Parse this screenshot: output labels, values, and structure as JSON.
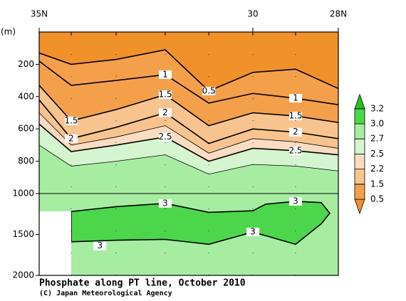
{
  "chart_data": {
    "type": "contour",
    "title": "Phosphate along PT line, October 2010",
    "credit": "(C) Japan Meteorological Agency",
    "y_label": "(m)",
    "xlim": [
      35,
      28
    ],
    "xticks": [
      {
        "value": 35,
        "label": "35N"
      },
      30,
      {
        "value": 28,
        "label": "28N"
      }
    ],
    "ylim": [
      0,
      2000
    ],
    "scale_break": 1000,
    "yticks": [
      200,
      400,
      600,
      800,
      1000,
      1500,
      2000
    ],
    "stations": [
      35,
      34.25,
      33.2,
      32.05,
      31.03,
      30,
      29,
      28
    ],
    "colorbar": {
      "levels": [
        0.5,
        1.5,
        2.2,
        2.5,
        2.7,
        {
          "value": 3,
          "label": "3.0"
        },
        3.2
      ],
      "colors": [
        "#f0912a",
        "#f4a04a",
        "#f7c48f",
        "#fadcc2",
        "#d4f5cf",
        "#a6eda2",
        "#4cd64c",
        "#22c322"
      ]
    },
    "contours": [
      {
        "level": 0.5,
        "depth": [
          130,
          200,
          170,
          110,
          365,
          250,
          230,
          350
        ]
      },
      {
        "level": 1,
        "depth": [
          180,
          330,
          300,
          264,
          440,
          380,
          410,
          450
        ]
      },
      {
        "level": 1.5,
        "depth": [
          330,
          550,
          480,
          388,
          580,
          500,
          520,
          560
        ]
      },
      {
        "level": 2,
        "depth": [
          420,
          660,
          590,
          500,
          690,
          600,
          620,
          660
        ]
      },
      {
        "level": 2.2,
        "depth": [
          500,
          700,
          650,
          580,
          750,
          660,
          680,
          720
        ]
      },
      {
        "level": 2.5,
        "depth": [
          570,
          740,
          700,
          650,
          800,
          720,
          735,
          760
        ]
      },
      {
        "level": 2.7,
        "depth": [
          700,
          830,
          800,
          760,
          880,
          820,
          830,
          860
        ]
      }
    ],
    "closed_contours": [
      {
        "level": 3,
        "x": [
          34.25,
          33.2,
          32.05,
          31.03,
          30,
          29.7,
          29,
          28.4,
          28.2,
          28.4,
          29,
          30,
          31.03,
          32.05,
          33.2,
          34.25
        ],
        "depth": [
          1220,
          1160,
          1120,
          1230,
          1210,
          1130,
          1095,
          1110,
          1240,
          1370,
          1620,
          1470,
          1620,
          1560,
          1570,
          1590
        ]
      }
    ],
    "contour_labels": [
      {
        "value": 0.5,
        "x": 31.03,
        "depth": 365
      },
      {
        "value": 1,
        "x": 32.05,
        "depth": 264
      },
      {
        "value": 1,
        "x": 29,
        "depth": 410
      },
      {
        "value": 1.5,
        "x": 34.25,
        "depth": 550
      },
      {
        "value": 1.5,
        "x": 32.05,
        "depth": 388
      },
      {
        "value": 1.5,
        "x": 29,
        "depth": 520
      },
      {
        "value": 2,
        "x": 34.25,
        "depth": 660
      },
      {
        "value": 2,
        "x": 32.05,
        "depth": 500
      },
      {
        "value": 2,
        "x": 29,
        "depth": 620
      },
      {
        "value": 2.5,
        "x": 32.05,
        "depth": 650
      },
      {
        "value": 2.5,
        "x": 29,
        "depth": 735
      },
      {
        "value": 3,
        "x": 32.05,
        "depth": 1120
      },
      {
        "value": 3,
        "x": 29,
        "depth": 1095
      },
      {
        "value": 3,
        "x": 33.58,
        "depth": 1640
      },
      {
        "value": 3,
        "x": 30,
        "depth": 1470
      }
    ]
  }
}
